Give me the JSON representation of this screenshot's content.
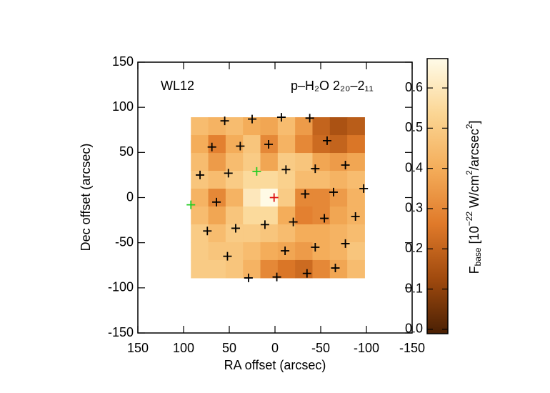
{
  "chart_data": {
    "type": "heatmap",
    "title_left": "WL12",
    "title_right": "p–H₂O 2₂₀–2₁₁",
    "xlabel": "RA offset (arcsec)",
    "ylabel": "Dec offset (arcsec)",
    "colorbar_label": [
      "F",
      "base",
      " [10",
      "−22",
      " W/cm",
      "2",
      "/arcsec",
      "2",
      "]"
    ],
    "xlim": [
      150,
      -150
    ],
    "ylim": [
      -150,
      150
    ],
    "xticks": [
      150,
      100,
      50,
      0,
      -50,
      -100,
      -150
    ],
    "yticks": [
      -150,
      -100,
      -50,
      0,
      50,
      100,
      150
    ],
    "clim": [
      -0.011,
      0.673
    ],
    "cticks": [
      {
        "value": 0,
        "label": "0.0"
      },
      0.1,
      0.2,
      0.3,
      0.4,
      0.5,
      0.6
    ],
    "colormap": [
      "#4a2004",
      "#a04a0e",
      "#e07a2a",
      "#f4ad5a",
      "#fbd694",
      "#fffbe8"
    ],
    "extent_x": [
      92,
      -98
    ],
    "extent_y": [
      89,
      -89
    ],
    "z": [
      [
        0.45,
        0.42,
        0.45,
        0.4,
        0.38,
        0.45,
        0.35,
        0.2,
        0.15,
        0.18
      ],
      [
        0.4,
        0.28,
        0.4,
        0.48,
        0.3,
        0.42,
        0.3,
        0.22,
        0.2,
        0.25
      ],
      [
        0.45,
        0.35,
        0.45,
        0.5,
        0.38,
        0.5,
        0.48,
        0.38,
        0.35,
        0.38
      ],
      [
        0.48,
        0.45,
        0.5,
        0.55,
        0.55,
        0.52,
        0.45,
        0.45,
        0.42,
        0.45
      ],
      [
        0.42,
        0.3,
        0.42,
        0.6,
        0.67,
        0.5,
        0.3,
        0.3,
        0.35,
        0.42
      ],
      [
        0.45,
        0.38,
        0.48,
        0.55,
        0.55,
        0.4,
        0.28,
        0.3,
        0.38,
        0.42
      ],
      [
        0.5,
        0.45,
        0.5,
        0.5,
        0.48,
        0.45,
        0.4,
        0.4,
        0.42,
        0.45
      ],
      [
        0.5,
        0.48,
        0.48,
        0.45,
        0.4,
        0.38,
        0.35,
        0.4,
        0.42,
        0.48
      ],
      [
        0.5,
        0.5,
        0.48,
        0.42,
        0.3,
        0.25,
        0.22,
        0.3,
        0.38,
        0.45
      ]
    ],
    "markers": {
      "x": [
        55,
        25,
        -7,
        -38,
        69,
        38,
        7,
        -57,
        82,
        51,
        -12,
        -44,
        -77,
        -97,
        64,
        -33,
        -64,
        74,
        43,
        11,
        -20,
        -54,
        -88,
        52,
        -11,
        -44,
        -77,
        29,
        -2,
        -35,
        -66,
        20,
        92,
        1
      ],
      "y": [
        85,
        87,
        89,
        88,
        56,
        57,
        59,
        63,
        25,
        27,
        31,
        32,
        36,
        10,
        -5,
        4,
        6,
        -37,
        -34,
        -30,
        -27,
        -23,
        -21,
        -65,
        -59,
        -55,
        -51,
        -89,
        -88,
        -84,
        -78,
        29,
        -8,
        0
      ],
      "color": [
        "#000",
        "#000",
        "#000",
        "#000",
        "#000",
        "#000",
        "#000",
        "#000",
        "#000",
        "#000",
        "#000",
        "#000",
        "#000",
        "#000",
        "#000",
        "#000",
        "#000",
        "#000",
        "#000",
        "#000",
        "#000",
        "#000",
        "#000",
        "#000",
        "#000",
        "#000",
        "#000",
        "#000",
        "#000",
        "#000",
        "#000",
        "#22cc22",
        "#22cc22",
        "#dd1111"
      ]
    }
  }
}
